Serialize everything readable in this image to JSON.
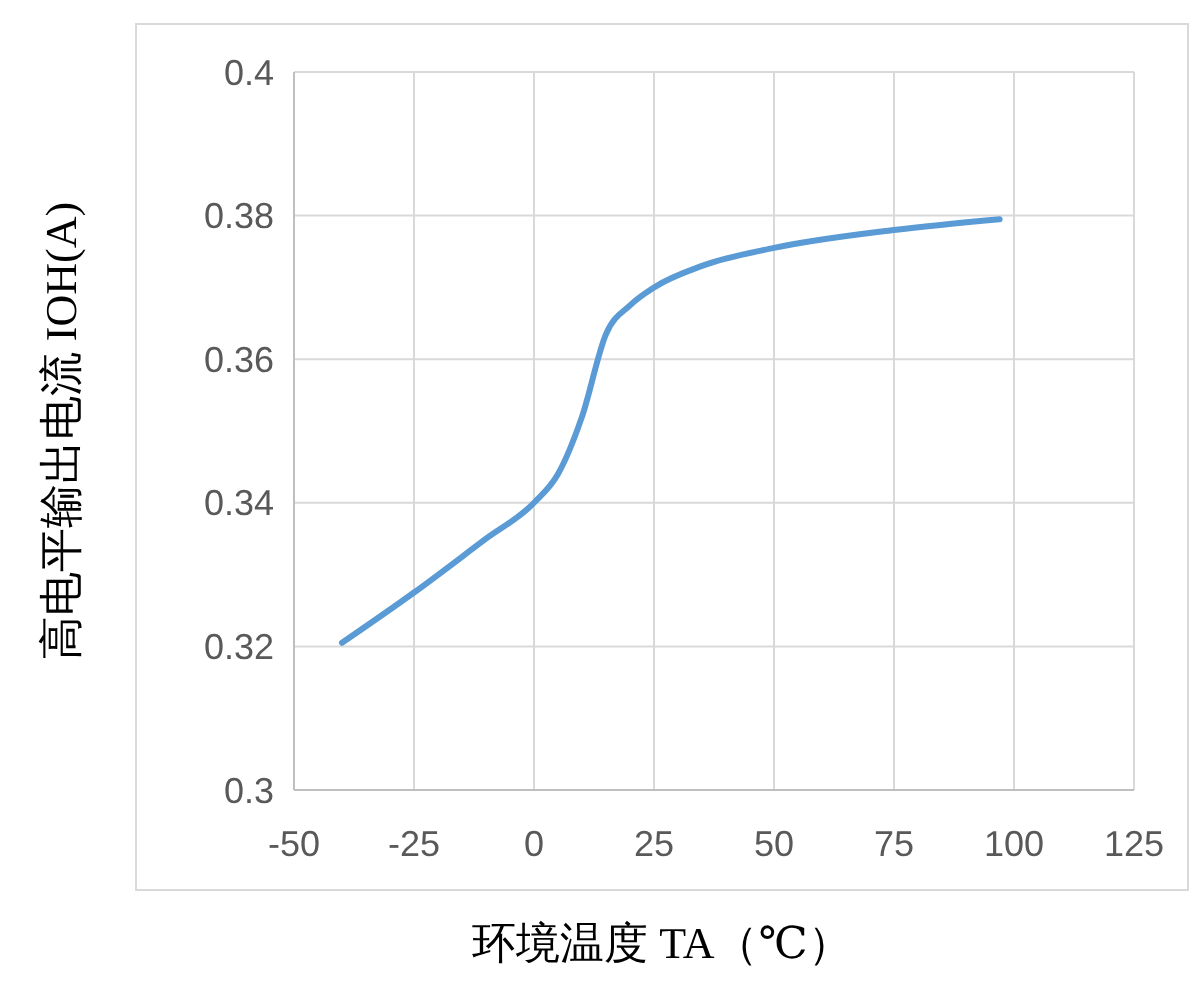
{
  "chart_data": {
    "type": "line",
    "xlabel": "环境温度 TA（℃）",
    "ylabel": "高电平输出电流 IOH(A)",
    "x": [
      -40,
      -25,
      -10,
      0,
      5,
      10,
      15,
      20,
      25,
      35,
      50,
      75,
      97
    ],
    "series": [
      {
        "color": "#5b9bd5",
        "values": [
          0.3205,
          0.3275,
          0.335,
          0.34,
          0.344,
          0.352,
          0.3635,
          0.3675,
          0.37,
          0.373,
          0.3755,
          0.378,
          0.3795
        ]
      }
    ],
    "xlim": [
      -50,
      125
    ],
    "xticks": [
      -50,
      -25,
      0,
      25,
      50,
      75,
      100,
      125
    ],
    "ylim": [
      0.3,
      0.4
    ],
    "yticks": [
      0.3,
      0.32,
      0.34,
      0.36,
      0.38,
      0.4
    ],
    "grid": true,
    "marker": "none",
    "line_style": "solid"
  }
}
